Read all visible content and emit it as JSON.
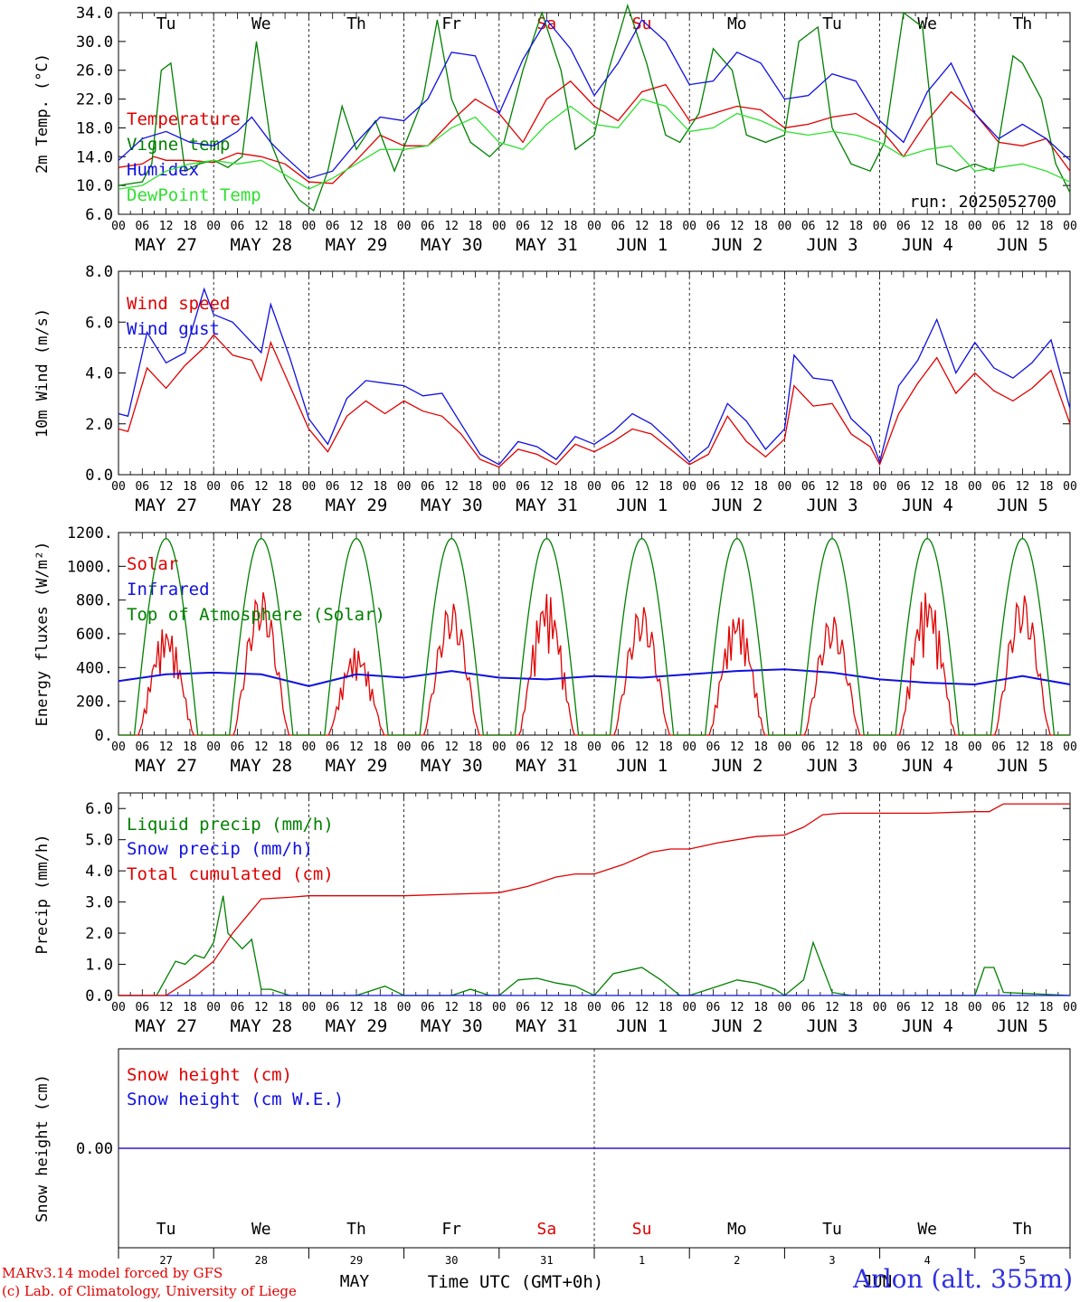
{
  "run_label": "run: 2025052700",
  "x_axis": {
    "hour_labels": [
      "00",
      "06",
      "12",
      "18"
    ],
    "date_labels": [
      "MAY 27",
      "MAY 28",
      "MAY 29",
      "MAY 30",
      "MAY 31",
      "JUN  1",
      "JUN  2",
      "JUN  3",
      "JUN  4",
      "JUN  5"
    ],
    "weekday_labels": [
      "Tu",
      "We",
      "Th",
      "Fr",
      "Sa",
      "Su",
      "Mo",
      "Tu",
      "We",
      "Th"
    ],
    "weekend_indices": [
      4,
      5
    ],
    "bottom_day_numbers": [
      "27",
      "28",
      "29",
      "30",
      "31",
      "1",
      "2",
      "3",
      "4",
      "5"
    ],
    "month_labels": [
      "MAY",
      "JUN"
    ],
    "time_label": "Time UTC (GMT+0h)"
  },
  "colors": {
    "red": "#e00000",
    "green": "#008000",
    "blue": "#1010e0",
    "lightgreen": "#30e030",
    "weekend": "#e00000"
  },
  "footer": {
    "credit_line1": "MARv3.14 model forced by GFS",
    "credit_line2": "(c) Lab. of Climatology, University of Liege",
    "station": "Arlon (alt. 355m)"
  },
  "chart_data": [
    {
      "type": "line",
      "ylabel": "2m Temp. (°C)",
      "ylim": [
        6,
        34
      ],
      "yticks": [
        "6.0",
        "10.0",
        "14.0",
        "18.0",
        "22.0",
        "26.0",
        "30.0",
        "34.0"
      ],
      "x_unit": "days since 2025-05-27 00 UTC",
      "series": [
        {
          "name": "Temperature",
          "color": "red",
          "x": [
            0,
            0.25,
            0.375,
            0.5,
            0.75,
            1,
            1.25,
            1.5,
            1.75,
            2,
            2.25,
            2.5,
            2.75,
            3,
            3.25,
            3.5,
            3.75,
            4,
            4.25,
            4.5,
            4.75,
            5,
            5.25,
            5.5,
            5.75,
            6,
            6.25,
            6.5,
            6.75,
            7,
            7.25,
            7.5,
            7.75,
            8,
            8.25,
            8.5,
            8.75,
            9,
            9.25,
            9.5,
            9.75,
            10
          ],
          "y": [
            12.5,
            13,
            14,
            13.5,
            13.5,
            13.2,
            14.5,
            14,
            13,
            10.5,
            10.3,
            13.5,
            17,
            15.5,
            15.5,
            19,
            22,
            20,
            16,
            22,
            24.5,
            21,
            19,
            23,
            24,
            19,
            20,
            21,
            20.5,
            18,
            18.5,
            19.5,
            20,
            18,
            14,
            19,
            23,
            20,
            16,
            15.5,
            16.5,
            12
          ]
        },
        {
          "name": "Vigne temp",
          "color": "green",
          "x": [
            0,
            0.25,
            0.35,
            0.45,
            0.55,
            0.7,
            0.85,
            1,
            1.15,
            1.3,
            1.45,
            1.6,
            1.75,
            1.9,
            2.05,
            2.2,
            2.35,
            2.5,
            2.7,
            2.9,
            3.05,
            3.2,
            3.35,
            3.5,
            3.7,
            3.9,
            4.05,
            4.25,
            4.45,
            4.65,
            4.8,
            5,
            5.15,
            5.35,
            5.55,
            5.75,
            5.9,
            6.1,
            6.25,
            6.45,
            6.6,
            6.8,
            7,
            7.15,
            7.35,
            7.5,
            7.7,
            7.9,
            8.05,
            8.25,
            8.45,
            8.6,
            8.8,
            9,
            9.2,
            9.4,
            9.5,
            9.7,
            9.85,
            10
          ],
          "y": [
            10,
            10.5,
            13,
            26,
            27,
            12,
            13,
            13.5,
            12.5,
            14,
            30,
            16,
            11,
            8,
            6.5,
            12,
            21,
            15,
            19,
            12,
            17,
            22,
            33,
            22,
            16,
            14,
            16,
            26,
            34,
            26,
            15,
            17,
            26,
            35,
            27,
            17,
            16,
            20,
            29,
            26,
            17,
            16,
            17,
            30,
            32,
            18,
            13,
            12,
            16,
            34,
            32,
            13,
            12,
            13,
            12,
            28,
            27,
            22,
            13,
            9
          ]
        },
        {
          "name": "Humidex",
          "color": "blue",
          "x": [
            0,
            0.25,
            0.5,
            0.75,
            1,
            1.25,
            1.4,
            1.6,
            1.75,
            2,
            2.25,
            2.5,
            2.75,
            3,
            3.25,
            3.5,
            3.75,
            4,
            4.25,
            4.5,
            4.75,
            5,
            5.25,
            5.5,
            5.75,
            6,
            6.25,
            6.5,
            6.75,
            7,
            7.25,
            7.5,
            7.75,
            8,
            8.25,
            8.5,
            8.75,
            9,
            9.25,
            9.5,
            9.75,
            10
          ],
          "y": [
            13.5,
            16.5,
            17.5,
            16,
            15.5,
            17.5,
            19.5,
            16,
            14,
            11,
            12,
            16,
            19.5,
            19,
            22,
            28.5,
            28,
            20,
            27.5,
            33,
            29,
            22.5,
            27,
            33,
            30,
            24,
            24.5,
            28.5,
            27,
            22,
            22.5,
            25.5,
            24.5,
            19,
            16,
            23,
            27,
            20,
            16.5,
            18.5,
            16.5,
            13.5
          ]
        },
        {
          "name": "DewPoint Temp",
          "color": "lightgreen",
          "x": [
            0,
            0.25,
            0.5,
            0.75,
            1,
            1.25,
            1.5,
            1.75,
            2,
            2.25,
            2.5,
            2.75,
            3,
            3.25,
            3.5,
            3.75,
            4,
            4.25,
            4.5,
            4.75,
            5,
            5.25,
            5.5,
            5.75,
            6,
            6.25,
            6.5,
            6.75,
            7,
            7.25,
            7.5,
            7.75,
            8,
            8.25,
            8.5,
            8.75,
            9,
            9.25,
            9.5,
            9.75,
            10
          ],
          "y": [
            9.5,
            10,
            12,
            13,
            13.5,
            13,
            13.5,
            11.5,
            9.5,
            11,
            13,
            15,
            15,
            15.5,
            18,
            19.5,
            16,
            15,
            18.5,
            21,
            18.5,
            18,
            22,
            21,
            17.5,
            18,
            20,
            19,
            17.5,
            17,
            17.5,
            17,
            16,
            14,
            15,
            15.5,
            12,
            12.5,
            13,
            12,
            10.5
          ]
        }
      ]
    },
    {
      "type": "line",
      "ylabel": "10m Wind (m/s)",
      "ylim": [
        0,
        8
      ],
      "yticks": [
        "0.0",
        "2.0",
        "4.0",
        "6.0",
        "8.0"
      ],
      "reference_line": 5,
      "x_unit": "days since 2025-05-27 00 UTC",
      "series": [
        {
          "name": "Wind speed",
          "color": "red",
          "x": [
            0,
            0.1,
            0.3,
            0.5,
            0.7,
            0.9,
            1,
            1.2,
            1.4,
            1.5,
            1.6,
            1.8,
            2,
            2.2,
            2.4,
            2.6,
            2.8,
            3,
            3.2,
            3.4,
            3.6,
            3.8,
            4,
            4.2,
            4.4,
            4.6,
            4.8,
            5,
            5.2,
            5.4,
            5.6,
            5.8,
            6,
            6.2,
            6.4,
            6.6,
            6.8,
            7,
            7.1,
            7.3,
            7.5,
            7.7,
            7.9,
            8,
            8.2,
            8.4,
            8.6,
            8.8,
            9,
            9.2,
            9.4,
            9.6,
            9.8,
            10
          ],
          "y": [
            1.8,
            1.7,
            4.2,
            3.4,
            4.3,
            5,
            5.5,
            4.7,
            4.5,
            3.7,
            5.2,
            3.5,
            1.8,
            0.9,
            2.3,
            2.9,
            2.4,
            2.9,
            2.5,
            2.3,
            1.6,
            0.6,
            0.3,
            1,
            0.8,
            0.4,
            1.2,
            0.9,
            1.3,
            1.8,
            1.6,
            1,
            0.4,
            0.8,
            2.3,
            1.3,
            0.7,
            1.4,
            3.5,
            2.7,
            2.8,
            1.6,
            1.1,
            0.4,
            2.4,
            3.6,
            4.6,
            3.2,
            4,
            3.3,
            2.9,
            3.4,
            4.1,
            2
          ]
        },
        {
          "name": "Wind gust",
          "color": "blue",
          "x": [
            0,
            0.1,
            0.3,
            0.5,
            0.7,
            0.9,
            1,
            1.2,
            1.4,
            1.5,
            1.6,
            1.8,
            2,
            2.2,
            2.4,
            2.6,
            2.8,
            3,
            3.2,
            3.4,
            3.6,
            3.8,
            4,
            4.2,
            4.4,
            4.6,
            4.8,
            5,
            5.2,
            5.4,
            5.6,
            5.8,
            6,
            6.2,
            6.4,
            6.6,
            6.8,
            7,
            7.1,
            7.3,
            7.5,
            7.7,
            7.9,
            8,
            8.2,
            8.4,
            8.6,
            8.8,
            9,
            9.2,
            9.4,
            9.6,
            9.8,
            10
          ],
          "y": [
            2.4,
            2.3,
            5.6,
            4.4,
            4.8,
            7.3,
            6.3,
            6,
            5.2,
            4.8,
            6.7,
            4.6,
            2.2,
            1.2,
            3,
            3.7,
            3.6,
            3.5,
            3.1,
            3.2,
            2,
            0.8,
            0.4,
            1.3,
            1.1,
            0.6,
            1.5,
            1.2,
            1.7,
            2.4,
            2,
            1.3,
            0.5,
            1.1,
            2.8,
            2.1,
            1,
            1.8,
            4.7,
            3.8,
            3.7,
            2.2,
            1.5,
            0.5,
            3.5,
            4.5,
            6.1,
            4,
            5.2,
            4.2,
            3.8,
            4.4,
            5.3,
            2.6
          ]
        }
      ]
    },
    {
      "type": "line",
      "ylabel": "Energy fluxes (W/m²)",
      "ylim": [
        0,
        1200
      ],
      "yticks": [
        "0.",
        "200.",
        "400.",
        "600.",
        "800.",
        "1000.",
        "1200."
      ],
      "x_unit": "days since 2025-05-27 00 UTC",
      "series": [
        {
          "name": "Solar",
          "color": "red",
          "daily_peaks": [
            650,
            870,
            520,
            800,
            850,
            780,
            740,
            720,
            860,
            850
          ]
        },
        {
          "name": "Infrared",
          "color": "blue",
          "x": [
            0,
            0.5,
            1,
            1.5,
            2,
            2.5,
            3,
            3.5,
            4,
            4.5,
            5,
            5.5,
            6,
            6.5,
            7,
            7.5,
            8,
            8.5,
            9,
            9.5,
            10
          ],
          "y": [
            320,
            360,
            370,
            360,
            290,
            360,
            340,
            380,
            340,
            330,
            350,
            340,
            360,
            380,
            390,
            370,
            330,
            310,
            300,
            350,
            300
          ]
        },
        {
          "name": "Top of Atmosphere (Solar)",
          "color": "green",
          "daily_peak": 1165,
          "sunrise_hour": 4,
          "sunset_hour": 20
        }
      ]
    },
    {
      "type": "line",
      "ylabel": "Precip (mm/h)",
      "ylim": [
        0,
        6.5
      ],
      "yticks": [
        "0.0",
        "1.0",
        "2.0",
        "3.0",
        "4.0",
        "5.0",
        "6.0"
      ],
      "x_unit": "days since 2025-05-27 00 UTC",
      "series": [
        {
          "name": "Liquid precip (mm/h)",
          "color": "green",
          "x": [
            0,
            0.4,
            0.6,
            0.7,
            0.8,
            0.9,
            1,
            1.1,
            1.15,
            1.3,
            1.4,
            1.5,
            1.6,
            1.7,
            1.8,
            2,
            2.5,
            2.8,
            3,
            3.5,
            3.7,
            3.9,
            4,
            4.2,
            4.4,
            4.6,
            4.8,
            5,
            5.2,
            5.5,
            5.7,
            5.9,
            6,
            6.3,
            6.5,
            6.7,
            6.9,
            7,
            7.2,
            7.3,
            7.5,
            7.7,
            8,
            8.5,
            9,
            9.1,
            9.2,
            9.3,
            10
          ],
          "y": [
            0,
            0,
            1.1,
            1,
            1.3,
            1.2,
            1.7,
            3.2,
            2,
            1.5,
            1.8,
            0.2,
            0.2,
            0.1,
            0,
            0,
            0,
            0.3,
            0,
            0,
            0.2,
            0,
            0,
            0.5,
            0.55,
            0.4,
            0.3,
            0,
            0.7,
            0.9,
            0.5,
            0,
            0,
            0.3,
            0.5,
            0.4,
            0.2,
            0,
            0.5,
            1.7,
            0.1,
            0,
            0,
            0,
            0,
            0.9,
            0.9,
            0.1,
            0
          ]
        },
        {
          "name": "Snow precip (mm/h)",
          "color": "blue",
          "x": [
            0,
            10
          ],
          "y": [
            0,
            0
          ]
        },
        {
          "name": "Total cumulated (cm)",
          "color": "red",
          "x": [
            0,
            0.5,
            0.8,
            1,
            1.2,
            1.5,
            1.8,
            2,
            3,
            3.5,
            4,
            4.3,
            4.6,
            4.8,
            5,
            5.3,
            5.6,
            5.8,
            6,
            6.3,
            6.7,
            7,
            7.2,
            7.4,
            7.6,
            8,
            8.5,
            9,
            9.15,
            9.3,
            10
          ],
          "y": [
            0,
            0,
            0.6,
            1.1,
            2,
            3.1,
            3.15,
            3.2,
            3.2,
            3.25,
            3.3,
            3.5,
            3.8,
            3.9,
            3.9,
            4.2,
            4.6,
            4.7,
            4.7,
            4.9,
            5.1,
            5.15,
            5.4,
            5.8,
            5.85,
            5.85,
            5.85,
            5.9,
            5.9,
            6.15,
            6.15
          ]
        }
      ]
    },
    {
      "type": "line",
      "ylabel": "Snow height (cm)",
      "ylim": [
        -1,
        1
      ],
      "yticks": [
        "0.00"
      ],
      "x_unit": "days since 2025-05-27 00 UTC",
      "series": [
        {
          "name": "Snow height (cm)",
          "color": "red",
          "x": [
            0,
            10
          ],
          "y": [
            0,
            0
          ]
        },
        {
          "name": "Snow height (cm W.E.)",
          "color": "blue",
          "x": [
            0,
            10
          ],
          "y": [
            0,
            0
          ]
        }
      ]
    }
  ]
}
